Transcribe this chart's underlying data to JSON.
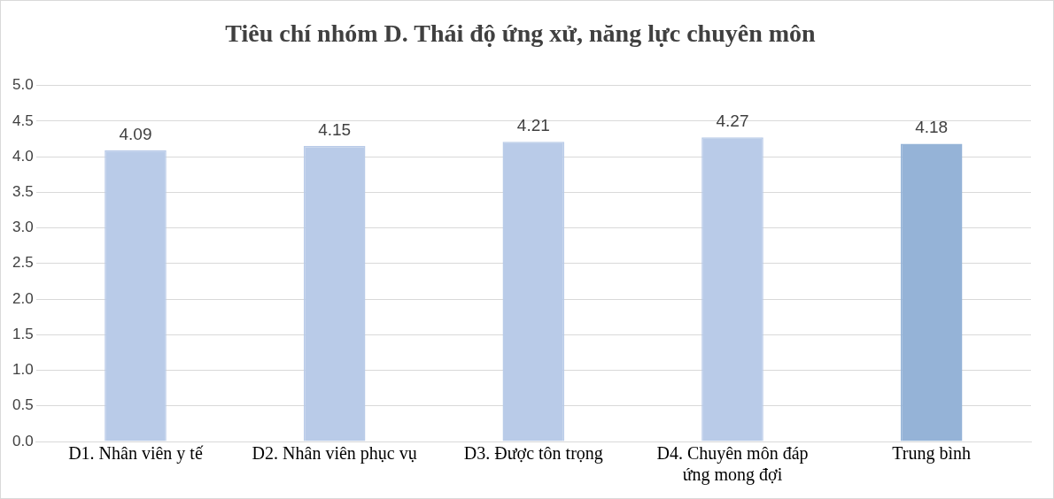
{
  "chart_data": {
    "type": "bar",
    "title": "Tiêu chí nhóm D. Thái độ ứng xử, năng lực chuyên môn",
    "categories": [
      "D1. Nhân viên y tế",
      "D2. Nhân viên phục vụ",
      "D3. Được tôn trọng",
      "D4. Chuyên môn đáp ứng mong đợi",
      "Trung bình"
    ],
    "values": [
      4.09,
      4.15,
      4.21,
      4.27,
      4.18
    ],
    "colors": [
      "#b9cbe8",
      "#b9cbe8",
      "#b9cbe8",
      "#b9cbe8",
      "#95b3d7"
    ],
    "ylim": [
      0,
      5
    ],
    "yticks": [
      {
        "value": 0,
        "label": "0.0"
      },
      0.5,
      {
        "value": 1,
        "label": "1.0"
      },
      1.5,
      {
        "value": 2,
        "label": "2.0"
      },
      2.5,
      {
        "value": 3,
        "label": "3.0"
      },
      3.5,
      {
        "value": 4,
        "label": "4.0"
      },
      4.5,
      {
        "value": 5,
        "label": "5.0"
      }
    ],
    "grid": "y",
    "legend": false,
    "data_labels": true
  }
}
